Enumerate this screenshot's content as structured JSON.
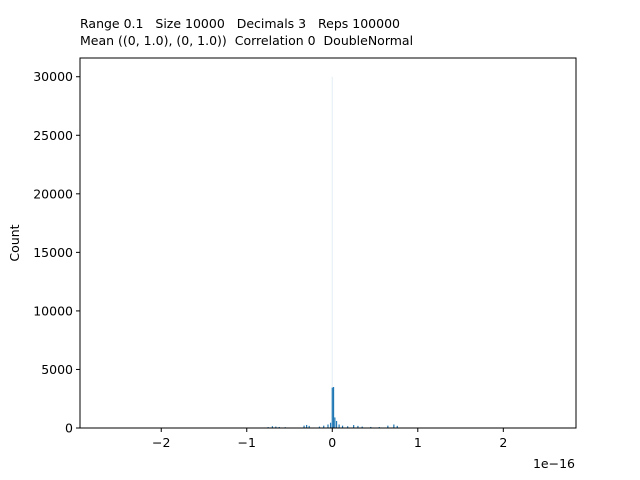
{
  "chart_data": {
    "type": "bar",
    "title_lines": [
      "Range 0.1   Size 10000   Decimals 3   Reps 100000",
      "Mean ((0, 1.0), (0, 1.0))  Correlation 0  DoubleNormal"
    ],
    "xlabel": "",
    "ylabel": "Count",
    "x_offset_label": "1e−16",
    "xlim": [
      -2.95,
      2.85
    ],
    "ylim": [
      0,
      31600
    ],
    "xticks": [
      -2,
      -1,
      0,
      1,
      2
    ],
    "xtick_labels": [
      "−2",
      "−1",
      "0",
      "1",
      "2"
    ],
    "yticks": [
      0,
      5000,
      10000,
      15000,
      20000,
      25000,
      30000
    ],
    "ytick_labels": [
      "0",
      "5000",
      "10000",
      "15000",
      "20000",
      "25000",
      "30000"
    ],
    "grid": false,
    "legend": "none",
    "bar_color": "#1f77b4",
    "bars": [
      {
        "x": -0.75,
        "count": 80
      },
      {
        "x": -0.7,
        "count": 150
      },
      {
        "x": -0.66,
        "count": 120
      },
      {
        "x": -0.62,
        "count": 90
      },
      {
        "x": -0.55,
        "count": 70
      },
      {
        "x": -0.33,
        "count": 200
      },
      {
        "x": -0.3,
        "count": 260
      },
      {
        "x": -0.27,
        "count": 180
      },
      {
        "x": -0.15,
        "count": 120
      },
      {
        "x": -0.1,
        "count": 200
      },
      {
        "x": -0.05,
        "count": 300
      },
      {
        "x": -0.02,
        "count": 450
      },
      {
        "x": 0.0,
        "count": 3450
      },
      {
        "x": 0.015,
        "count": 3500
      },
      {
        "x": 0.03,
        "count": 900
      },
      {
        "x": 0.05,
        "count": 600
      },
      {
        "x": 0.08,
        "count": 300
      },
      {
        "x": 0.12,
        "count": 200
      },
      {
        "x": 0.18,
        "count": 150
      },
      {
        "x": 0.25,
        "count": 250
      },
      {
        "x": 0.3,
        "count": 180
      },
      {
        "x": 0.35,
        "count": 120
      },
      {
        "x": 0.45,
        "count": 90
      },
      {
        "x": 0.55,
        "count": 80
      },
      {
        "x": 0.65,
        "count": 200
      },
      {
        "x": 0.72,
        "count": 300
      },
      {
        "x": 0.76,
        "count": 180
      }
    ],
    "faint_line_x": 0,
    "faint_line_count": 30000
  }
}
